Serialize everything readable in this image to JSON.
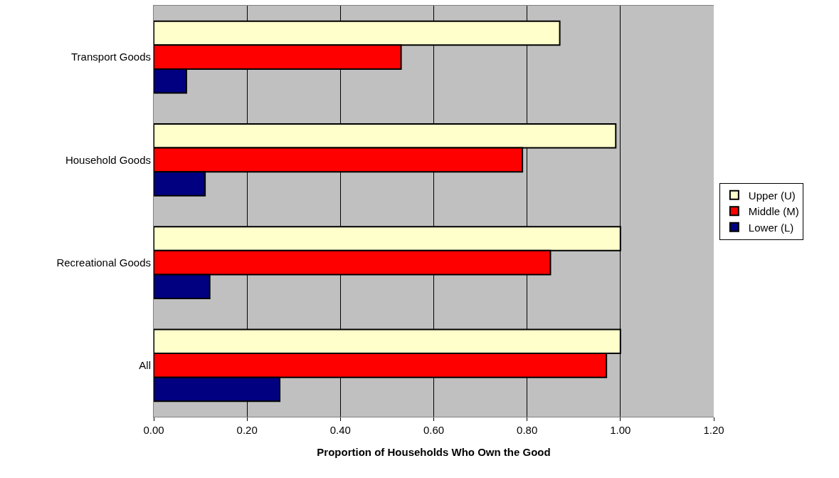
{
  "chart_data": {
    "type": "bar",
    "orientation": "horizontal",
    "xlabel": "Proportion of Households Who Own the Good",
    "categories": [
      "Transport Goods",
      "Household Goods",
      "Recreational Goods",
      "All"
    ],
    "series": [
      {
        "name": "Upper (U)",
        "color": "#ffffcc",
        "values": [
          0.87,
          0.99,
          1.0,
          1.0
        ]
      },
      {
        "name": "Middle (M)",
        "color": "#ff0000",
        "values": [
          0.53,
          0.79,
          0.85,
          0.97
        ]
      },
      {
        "name": "Lower (L)",
        "color": "#000080",
        "values": [
          0.07,
          0.11,
          0.12,
          0.27
        ]
      }
    ],
    "xlim": [
      0,
      1.2
    ],
    "xticks": [
      {
        "value": 0,
        "label": "0.00"
      },
      {
        "value": 0.2,
        "label": "0.20"
      },
      {
        "value": 0.4,
        "label": "0.40"
      },
      {
        "value": 0.6,
        "label": "0.60"
      },
      {
        "value": 0.8,
        "label": "0.80"
      },
      {
        "value": 1.0,
        "label": "1.00"
      },
      {
        "value": 1.2,
        "label": "1.20"
      }
    ],
    "grid": "x",
    "legend": "right"
  }
}
